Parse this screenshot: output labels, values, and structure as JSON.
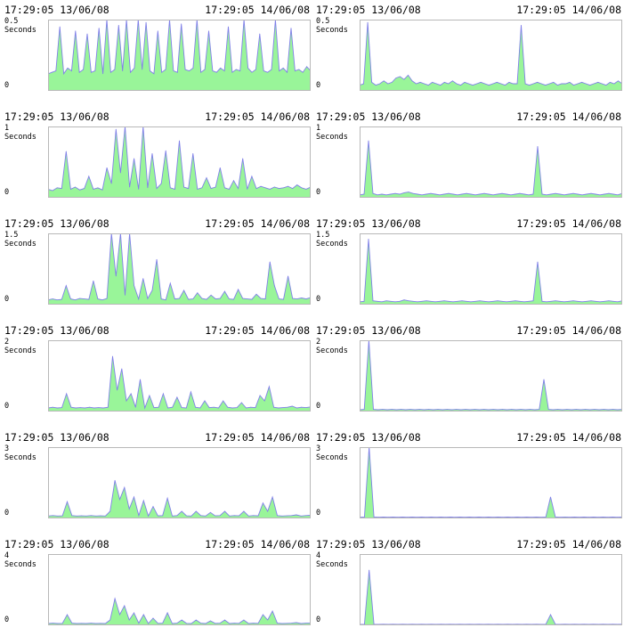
{
  "panels": [
    {
      "start_label": "17:29:05 13/06/08",
      "end_label": "17:29:05 14/06/08",
      "y_max_label": "0.5",
      "y_unit": "Seconds",
      "y_min_label": "0"
    },
    {
      "start_label": "17:29:05 13/06/08",
      "end_label": "17:29:05 14/06/08",
      "y_max_label": "0.5",
      "y_unit": "Seconds",
      "y_min_label": "0"
    },
    {
      "start_label": "17:29:05 13/06/08",
      "end_label": "17:29:05 14/06/08",
      "y_max_label": "1",
      "y_unit": "Seconds",
      "y_min_label": "0"
    },
    {
      "start_label": "17:29:05 13/06/08",
      "end_label": "17:29:05 14/06/08",
      "y_max_label": "1",
      "y_unit": "Seconds",
      "y_min_label": "0"
    },
    {
      "start_label": "17:29:05 13/06/08",
      "end_label": "17:29:05 14/06/08",
      "y_max_label": "1.5",
      "y_unit": "Seconds",
      "y_min_label": "0"
    },
    {
      "start_label": "17:29:05 13/06/08",
      "end_label": "17:29:05 14/06/08",
      "y_max_label": "1.5",
      "y_unit": "Seconds",
      "y_min_label": "0"
    },
    {
      "start_label": "17:29:05 13/06/08",
      "end_label": "17:29:05 14/06/08",
      "y_max_label": "2",
      "y_unit": "Seconds",
      "y_min_label": "0"
    },
    {
      "start_label": "17:29:05 13/06/08",
      "end_label": "17:29:05 14/06/08",
      "y_max_label": "2",
      "y_unit": "Seconds",
      "y_min_label": "0"
    },
    {
      "start_label": "17:29:05 13/06/08",
      "end_label": "17:29:05 14/06/08",
      "y_max_label": "3",
      "y_unit": "Seconds",
      "y_min_label": "0"
    },
    {
      "start_label": "17:29:05 13/06/08",
      "end_label": "17:29:05 14/06/08",
      "y_max_label": "3",
      "y_unit": "Seconds",
      "y_min_label": "0"
    },
    {
      "start_label": "17:29:05 13/06/08",
      "end_label": "17:29:05 14/06/08",
      "y_max_label": "4",
      "y_unit": "Seconds",
      "y_min_label": "0"
    },
    {
      "start_label": "17:29:05 13/06/08",
      "end_label": "17:29:05 14/06/08",
      "y_max_label": "4",
      "y_unit": "Seconds",
      "y_min_label": "0"
    }
  ],
  "colors": {
    "fill": "#99f599",
    "line": "#8080e8",
    "frame": "#b8b8b8",
    "background": "#ffffff",
    "text": "#000000"
  },
  "chart_data": [
    {
      "type": "area",
      "column": "left",
      "ylim": [
        0,
        0.5
      ],
      "series": [
        {
          "values": [
            0.12,
            0.13,
            0.14,
            0.45,
            0.12,
            0.16,
            0.14,
            0.42,
            0.13,
            0.15,
            0.4,
            0.13,
            0.14,
            0.44,
            0.12,
            0.5,
            0.13,
            0.15,
            0.46,
            0.14,
            0.5,
            0.13,
            0.16,
            0.5,
            0.15,
            0.48,
            0.14,
            0.12,
            0.42,
            0.13,
            0.15,
            0.5,
            0.14,
            0.13,
            0.47,
            0.15,
            0.14,
            0.16,
            0.5,
            0.13,
            0.15,
            0.42,
            0.14,
            0.13,
            0.16,
            0.14,
            0.45,
            0.13,
            0.15,
            0.14,
            0.5,
            0.16,
            0.13,
            0.15,
            0.4,
            0.14,
            0.13,
            0.15,
            0.5,
            0.14,
            0.16,
            0.13,
            0.44,
            0.14,
            0.15,
            0.13,
            0.17,
            0.14
          ]
        }
      ]
    },
    {
      "type": "area",
      "column": "right",
      "ylim": [
        0,
        0.5
      ],
      "series": [
        {
          "values": [
            0.04,
            0.05,
            0.48,
            0.06,
            0.04,
            0.05,
            0.07,
            0.05,
            0.06,
            0.09,
            0.1,
            0.08,
            0.11,
            0.07,
            0.05,
            0.06,
            0.05,
            0.04,
            0.06,
            0.05,
            0.04,
            0.06,
            0.05,
            0.07,
            0.05,
            0.04,
            0.06,
            0.05,
            0.04,
            0.05,
            0.06,
            0.05,
            0.04,
            0.05,
            0.06,
            0.05,
            0.04,
            0.06,
            0.05,
            0.05,
            0.46,
            0.05,
            0.04,
            0.05,
            0.06,
            0.05,
            0.04,
            0.05,
            0.06,
            0.04,
            0.05,
            0.05,
            0.06,
            0.04,
            0.05,
            0.06,
            0.05,
            0.04,
            0.05,
            0.06,
            0.05,
            0.04,
            0.06,
            0.05,
            0.07,
            0.05
          ]
        }
      ]
    },
    {
      "type": "area",
      "column": "left",
      "ylim": [
        0,
        1
      ],
      "series": [
        {
          "values": [
            0.12,
            0.1,
            0.14,
            0.13,
            0.65,
            0.12,
            0.15,
            0.11,
            0.13,
            0.3,
            0.12,
            0.14,
            0.11,
            0.42,
            0.2,
            0.96,
            0.35,
            1,
            0.15,
            0.55,
            0.12,
            1,
            0.14,
            0.62,
            0.13,
            0.2,
            0.66,
            0.14,
            0.12,
            0.8,
            0.15,
            0.13,
            0.62,
            0.12,
            0.14,
            0.28,
            0.13,
            0.15,
            0.42,
            0.14,
            0.12,
            0.24,
            0.13,
            0.55,
            0.12,
            0.3,
            0.13,
            0.16,
            0.14,
            0.12,
            0.15,
            0.13,
            0.14,
            0.16,
            0.13,
            0.18,
            0.14,
            0.12,
            0.15
          ]
        }
      ]
    },
    {
      "type": "area",
      "column": "right",
      "ylim": [
        0,
        1
      ],
      "series": [
        {
          "values": [
            0.04,
            0.05,
            0.8,
            0.06,
            0.04,
            0.05,
            0.04,
            0.05,
            0.06,
            0.05,
            0.07,
            0.08,
            0.06,
            0.05,
            0.04,
            0.05,
            0.06,
            0.05,
            0.04,
            0.05,
            0.06,
            0.05,
            0.04,
            0.05,
            0.06,
            0.05,
            0.04,
            0.05,
            0.06,
            0.05,
            0.04,
            0.05,
            0.06,
            0.05,
            0.04,
            0.05,
            0.06,
            0.05,
            0.04,
            0.05,
            0.72,
            0.05,
            0.04,
            0.05,
            0.06,
            0.05,
            0.04,
            0.05,
            0.06,
            0.05,
            0.04,
            0.05,
            0.06,
            0.05,
            0.04,
            0.05,
            0.06,
            0.05,
            0.04,
            0.06
          ]
        }
      ]
    },
    {
      "type": "area",
      "column": "left",
      "ylim": [
        0,
        1.5
      ],
      "series": [
        {
          "values": [
            0.1,
            0.12,
            0.1,
            0.11,
            0.4,
            0.12,
            0.1,
            0.13,
            0.12,
            0.11,
            0.5,
            0.12,
            0.1,
            0.13,
            1.5,
            0.6,
            1.5,
            0.2,
            1.5,
            0.4,
            0.12,
            0.55,
            0.13,
            0.3,
            0.95,
            0.12,
            0.1,
            0.45,
            0.12,
            0.13,
            0.3,
            0.11,
            0.12,
            0.25,
            0.13,
            0.11,
            0.2,
            0.12,
            0.13,
            0.28,
            0.12,
            0.11,
            0.32,
            0.13,
            0.12,
            0.11,
            0.22,
            0.13,
            0.12,
            0.9,
            0.4,
            0.12,
            0.11,
            0.6,
            0.13,
            0.12,
            0.14,
            0.12,
            0.15
          ]
        }
      ]
    },
    {
      "type": "area",
      "column": "right",
      "ylim": [
        0,
        1.5
      ],
      "series": [
        {
          "values": [
            0.06,
            0.07,
            1.38,
            0.08,
            0.07,
            0.06,
            0.08,
            0.07,
            0.06,
            0.07,
            0.1,
            0.08,
            0.07,
            0.06,
            0.07,
            0.08,
            0.07,
            0.06,
            0.07,
            0.08,
            0.07,
            0.06,
            0.07,
            0.08,
            0.07,
            0.06,
            0.07,
            0.08,
            0.07,
            0.06,
            0.07,
            0.08,
            0.07,
            0.06,
            0.07,
            0.08,
            0.07,
            0.06,
            0.07,
            0.08,
            0.9,
            0.07,
            0.06,
            0.07,
            0.08,
            0.07,
            0.06,
            0.07,
            0.08,
            0.07,
            0.06,
            0.07,
            0.08,
            0.07,
            0.06,
            0.07,
            0.08,
            0.07,
            0.06,
            0.08
          ]
        }
      ]
    },
    {
      "type": "area",
      "column": "left",
      "ylim": [
        0,
        2
      ],
      "series": [
        {
          "values": [
            0.1,
            0.12,
            0.1,
            0.11,
            0.5,
            0.12,
            0.1,
            0.11,
            0.1,
            0.12,
            0.1,
            0.11,
            0.1,
            0.12,
            1.55,
            0.6,
            1.2,
            0.3,
            0.5,
            0.12,
            0.9,
            0.1,
            0.45,
            0.11,
            0.12,
            0.5,
            0.1,
            0.12,
            0.4,
            0.11,
            0.1,
            0.55,
            0.12,
            0.1,
            0.3,
            0.11,
            0.12,
            0.1,
            0.3,
            0.12,
            0.1,
            0.11,
            0.25,
            0.1,
            0.12,
            0.11,
            0.45,
            0.3,
            0.7,
            0.12,
            0.1,
            0.11,
            0.12,
            0.15,
            0.1,
            0.12,
            0.11,
            0.13
          ]
        }
      ]
    },
    {
      "type": "area",
      "column": "right",
      "ylim": [
        0,
        2
      ],
      "series": [
        {
          "values": [
            0.05,
            0.06,
            2,
            0.06,
            0.05,
            0.06,
            0.05,
            0.06,
            0.05,
            0.06,
            0.05,
            0.06,
            0.05,
            0.06,
            0.05,
            0.06,
            0.05,
            0.06,
            0.05,
            0.06,
            0.05,
            0.06,
            0.05,
            0.06,
            0.05,
            0.06,
            0.05,
            0.06,
            0.05,
            0.06,
            0.05,
            0.06,
            0.05,
            0.06,
            0.05,
            0.06,
            0.05,
            0.06,
            0.05,
            0.06,
            0.9,
            0.06,
            0.05,
            0.06,
            0.05,
            0.06,
            0.05,
            0.06,
            0.05,
            0.06,
            0.05,
            0.06,
            0.05,
            0.06,
            0.05,
            0.06,
            0.05,
            0.06
          ]
        }
      ]
    },
    {
      "type": "area",
      "column": "left",
      "ylim": [
        0,
        3
      ],
      "series": [
        {
          "values": [
            0.1,
            0.12,
            0.1,
            0.11,
            0.7,
            0.12,
            0.1,
            0.11,
            0.1,
            0.12,
            0.1,
            0.11,
            0.1,
            0.3,
            1.6,
            0.8,
            1.3,
            0.4,
            0.9,
            0.12,
            0.75,
            0.1,
            0.5,
            0.11,
            0.12,
            0.85,
            0.1,
            0.12,
            0.3,
            0.11,
            0.1,
            0.3,
            0.12,
            0.1,
            0.25,
            0.11,
            0.12,
            0.3,
            0.1,
            0.12,
            0.11,
            0.3,
            0.1,
            0.12,
            0.11,
            0.65,
            0.3,
            0.9,
            0.12,
            0.1,
            0.11,
            0.12,
            0.15,
            0.1,
            0.12,
            0.13
          ]
        }
      ]
    },
    {
      "type": "area",
      "column": "right",
      "ylim": [
        0,
        3
      ],
      "series": [
        {
          "values": [
            0.05,
            0.06,
            3,
            0.06,
            0.05,
            0.06,
            0.05,
            0.06,
            0.05,
            0.06,
            0.05,
            0.06,
            0.05,
            0.06,
            0.05,
            0.06,
            0.05,
            0.06,
            0.05,
            0.06,
            0.05,
            0.06,
            0.05,
            0.06,
            0.05,
            0.06,
            0.05,
            0.06,
            0.05,
            0.06,
            0.05,
            0.06,
            0.05,
            0.06,
            0.05,
            0.06,
            0.05,
            0.06,
            0.05,
            0.06,
            0.9,
            0.06,
            0.05,
            0.06,
            0.05,
            0.06,
            0.05,
            0.06,
            0.05,
            0.06,
            0.05,
            0.06,
            0.05,
            0.06,
            0.05,
            0.06
          ]
        }
      ]
    },
    {
      "type": "area",
      "column": "left",
      "ylim": [
        0,
        4
      ],
      "series": [
        {
          "values": [
            0.1,
            0.12,
            0.1,
            0.11,
            0.6,
            0.12,
            0.1,
            0.11,
            0.1,
            0.12,
            0.1,
            0.11,
            0.1,
            0.3,
            1.5,
            0.6,
            1.1,
            0.3,
            0.7,
            0.12,
            0.6,
            0.1,
            0.4,
            0.11,
            0.12,
            0.7,
            0.1,
            0.12,
            0.3,
            0.11,
            0.1,
            0.3,
            0.12,
            0.1,
            0.25,
            0.11,
            0.12,
            0.3,
            0.1,
            0.12,
            0.11,
            0.3,
            0.1,
            0.12,
            0.11,
            0.6,
            0.3,
            0.8,
            0.12,
            0.1,
            0.11,
            0.12,
            0.15,
            0.1,
            0.12,
            0.13
          ]
        }
      ]
    },
    {
      "type": "area",
      "column": "right",
      "ylim": [
        0,
        4
      ],
      "series": [
        {
          "values": [
            0.05,
            0.06,
            3.1,
            0.06,
            0.05,
            0.06,
            0.05,
            0.06,
            0.05,
            0.06,
            0.05,
            0.06,
            0.05,
            0.06,
            0.05,
            0.06,
            0.05,
            0.06,
            0.05,
            0.06,
            0.05,
            0.06,
            0.05,
            0.06,
            0.05,
            0.06,
            0.05,
            0.06,
            0.05,
            0.06,
            0.05,
            0.06,
            0.05,
            0.06,
            0.05,
            0.06,
            0.05,
            0.06,
            0.05,
            0.06,
            0.6,
            0.06,
            0.05,
            0.06,
            0.05,
            0.06,
            0.05,
            0.06,
            0.05,
            0.06,
            0.05,
            0.06,
            0.05,
            0.06,
            0.05,
            0.06
          ]
        }
      ]
    }
  ]
}
